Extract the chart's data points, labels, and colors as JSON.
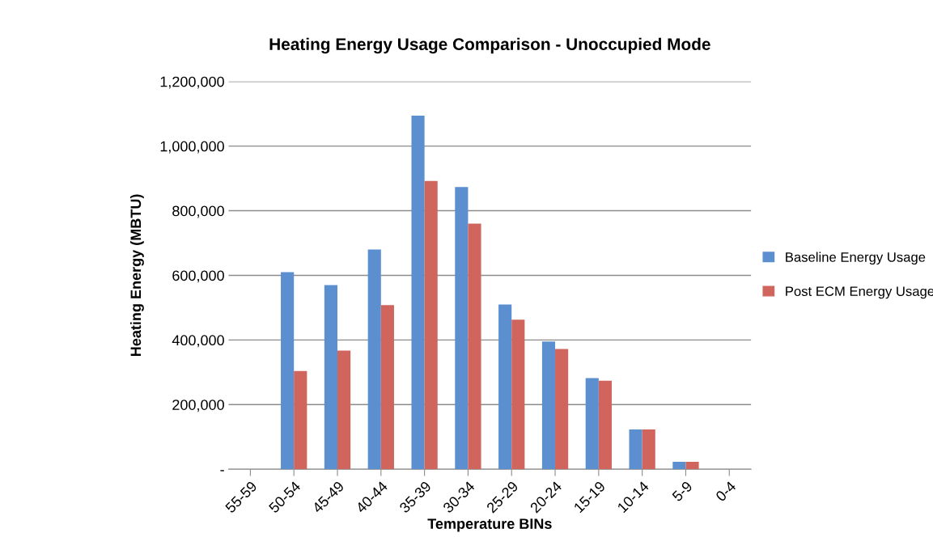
{
  "chart_data": {
    "type": "bar",
    "title": "Heating Energy Usage Comparison - Unoccupied Mode",
    "xlabel": "Temperature BINs",
    "ylabel": "Heating Energy (MBTU)",
    "categories": [
      "55-59",
      "50-54",
      "45-49",
      "40-44",
      "35-39",
      "30-34",
      "25-29",
      "20-24",
      "15-19",
      "10-14",
      "5-9",
      "0-4"
    ],
    "series": [
      {
        "name": "Baseline Energy Usage",
        "color": "#5b8fd0",
        "values": [
          0,
          610000,
          570000,
          680000,
          1094000,
          873000,
          510000,
          395000,
          282000,
          123000,
          23000,
          0
        ]
      },
      {
        "name": "Post ECM Energy Usage",
        "color": "#d0655e",
        "values": [
          0,
          304000,
          367000,
          508000,
          892000,
          760000,
          463000,
          372000,
          274000,
          123000,
          23000,
          0
        ]
      }
    ],
    "ylim": [
      0,
      1200000
    ],
    "yticks": [
      {
        "value": 0,
        "label": "-"
      },
      {
        "value": 200000,
        "label": "200,000"
      },
      {
        "value": 400000,
        "label": "400,000"
      },
      {
        "value": 600000,
        "label": "600,000"
      },
      {
        "value": 800000,
        "label": "800,000"
      },
      {
        "value": 1000000,
        "label": "1,000,000"
      },
      {
        "value": 1200000,
        "label": "1,200,000"
      }
    ],
    "grid": "y",
    "legend": "right"
  }
}
